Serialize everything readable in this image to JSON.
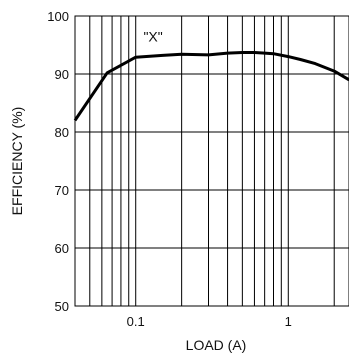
{
  "chart_data": {
    "type": "line",
    "xlabel": "LOAD (A)",
    "ylabel": "EFFICIENCY (%)",
    "x_scale": "log",
    "xlim": [
      0.04,
      2.5
    ],
    "ylim": [
      50,
      100
    ],
    "x_ticks": [
      {
        "value": 0.1,
        "label": "0.1"
      },
      {
        "value": 1,
        "label": "1"
      }
    ],
    "y_ticks": [
      {
        "value": 50,
        "label": "50"
      },
      {
        "value": 60,
        "label": "60"
      },
      {
        "value": 70,
        "label": "70"
      },
      {
        "value": 80,
        "label": "80"
      },
      {
        "value": 90,
        "label": "90"
      },
      {
        "value": 100,
        "label": "100"
      }
    ],
    "grid": true,
    "annotations": [
      {
        "text": "\"X\"",
        "x": 0.13,
        "y": 96.5
      }
    ],
    "series": [
      {
        "x": [
          0.04,
          0.065,
          0.1,
          0.15,
          0.2,
          0.3,
          0.4,
          0.5,
          0.6,
          0.7,
          0.8,
          1.0,
          1.2,
          1.5,
          2.0,
          2.5
        ],
        "y": [
          82,
          90.2,
          92.9,
          93.2,
          93.4,
          93.3,
          93.6,
          93.7,
          93.7,
          93.6,
          93.5,
          93.0,
          92.5,
          91.8,
          90.5,
          89.0
        ]
      }
    ]
  }
}
